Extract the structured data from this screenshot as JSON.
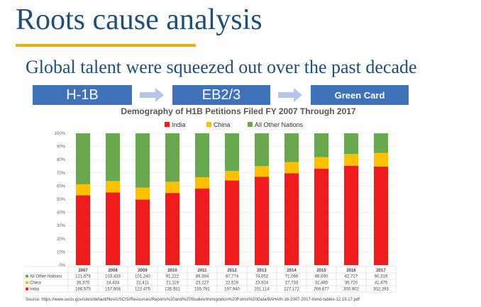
{
  "slide": {
    "title": "Roots cause analysis",
    "subtitle": "Global talent were squeezed out over the past decade",
    "flow": [
      "H-1B",
      "EB2/3",
      "Green Card"
    ],
    "source": "Source: https://www.uscis.gov/sites/default/files/USCIS/Resources/Reports%20and%20Studies/Immigration%20Forms%20Data/BAHA/h-1b-2007-2017-trend-tables-12.19.17.pdf"
  },
  "chart_data": {
    "type": "bar",
    "stacked": "percent",
    "title": "Demography of H1B Petitions Filed FY 2007 Through 2017",
    "categories": [
      "2007",
      "2008",
      "2009",
      "2010",
      "2011",
      "2012",
      "2013",
      "2014",
      "2015",
      "2016",
      "2017"
    ],
    "series": [
      {
        "name": "India",
        "color": "#ee1c1c",
        "values": [
          166575,
          157608,
          122475,
          135931,
          155791,
          197940,
          201114,
          227172,
          269677,
          300902,
          302293
        ],
        "labels": [
          "166,575",
          "157,608",
          "122,475",
          "135,931",
          "155,791",
          "197,940",
          "201,114",
          "227,172",
          "269,677",
          "300,902",
          "302,293"
        ]
      },
      {
        "name": "China",
        "color": "#ffc000",
        "values": [
          26370,
          24434,
          22411,
          21119,
          23227,
          22528,
          23924,
          27733,
          32485,
          35720,
          41475
        ],
        "labels": [
          "26,370",
          "24,434",
          "22,411",
          "21,119",
          "23,227",
          "22,528",
          "23,924",
          "27,733",
          "32,485",
          "35,720",
          "41,475"
        ]
      },
      {
        "name": "All Other Nations",
        "color": "#6aa84f",
        "values": [
          121676,
          103433,
          101240,
          91222,
          89394,
          87774,
          74652,
          71066,
          66690,
          62727,
          60319
        ],
        "labels": [
          "121,676",
          "103,433",
          "101,240",
          "91,222",
          "89,394",
          "87,774",
          "74,652",
          "71,066",
          "66,690",
          "62,727",
          "60,319"
        ]
      }
    ],
    "yticks": [
      "0%",
      "10%",
      "20%",
      "30%",
      "40%",
      "50%",
      "60%",
      "70%",
      "80%",
      "90%",
      "100%"
    ],
    "ylim": [
      0,
      100
    ],
    "legend": "top",
    "data_table_rows": [
      "All Other Nations",
      "China",
      "India"
    ]
  }
}
